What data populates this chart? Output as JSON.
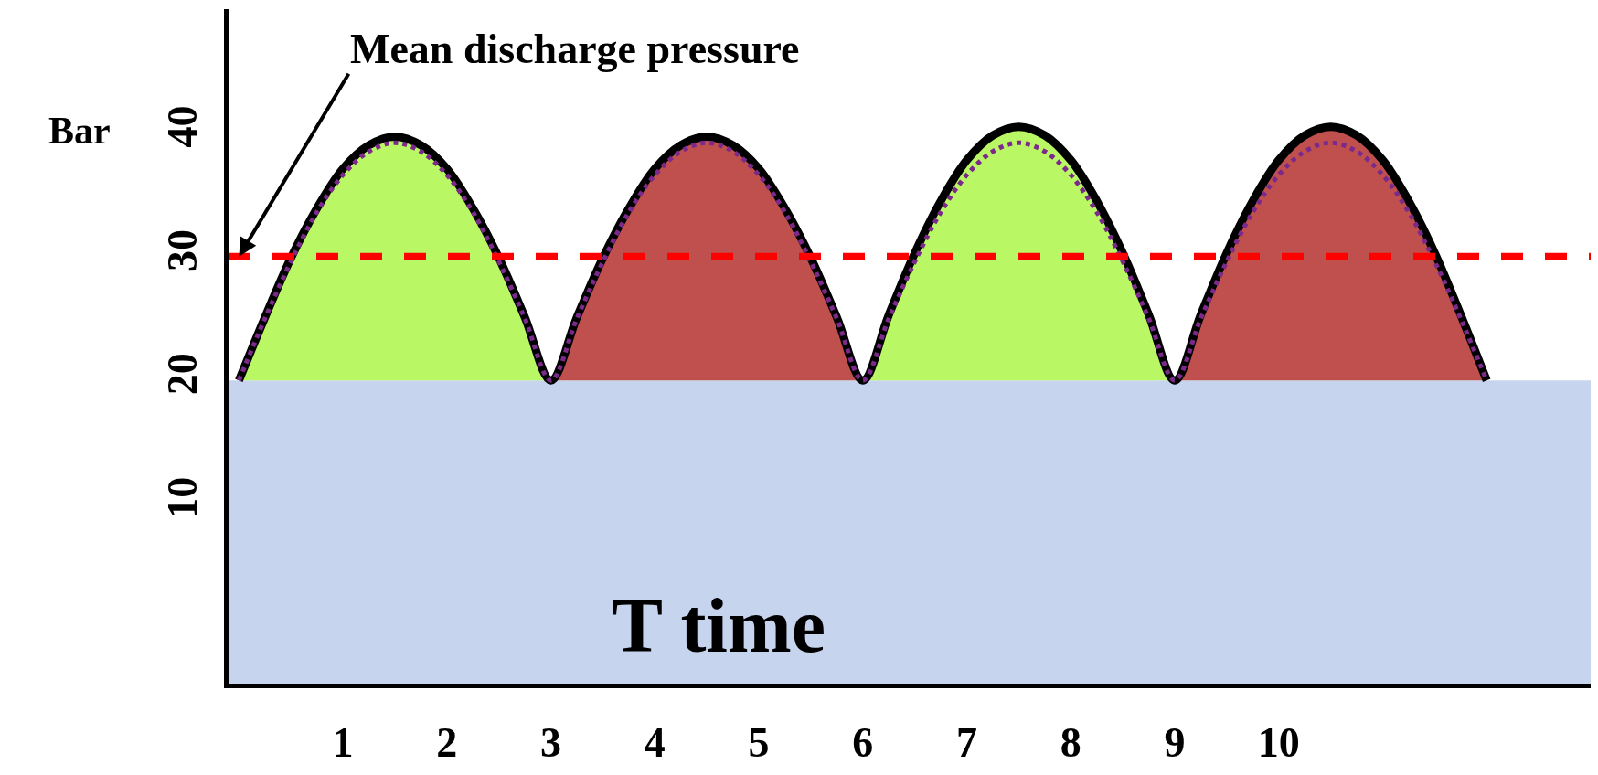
{
  "chart_data": {
    "type": "area",
    "xlabel": "T time",
    "ylabel": "Bar",
    "xlim": [
      -0.1,
      13
    ],
    "ylim": [
      -4.5,
      50
    ],
    "xticks": [
      1,
      2,
      3,
      4,
      5,
      6,
      7,
      8,
      9,
      10
    ],
    "yticks": [
      10,
      20,
      30,
      40
    ],
    "grid": false,
    "series": [
      {
        "color": "#b9f765",
        "x": [
          0,
          0.25,
          0.5,
          0.75,
          1,
          1.25,
          1.5,
          1.75,
          2,
          2.25,
          2.5,
          2.75,
          3
        ],
        "values": [
          20,
          25.1,
          29.9,
          33.9,
          37.1,
          39.0,
          39.7,
          39.0,
          37.1,
          33.9,
          29.9,
          25.1,
          20
        ]
      },
      {
        "color": "#c0504d",
        "x": [
          3,
          3.25,
          3.5,
          3.75,
          4,
          4.25,
          4.5,
          4.75,
          5,
          5.25,
          5.5,
          5.75,
          6
        ],
        "values": [
          20,
          25.1,
          29.9,
          33.9,
          37.1,
          39.0,
          39.7,
          39.0,
          37.1,
          33.9,
          29.9,
          25.1,
          20
        ]
      },
      {
        "color": "#b9f765",
        "x": [
          6,
          6.25,
          6.5,
          6.75,
          7,
          7.25,
          7.5,
          7.75,
          8,
          8.25,
          8.5,
          8.75,
          9
        ],
        "values": [
          20,
          25.3,
          30.3,
          34.5,
          37.8,
          39.8,
          40.5,
          39.8,
          37.8,
          34.5,
          30.3,
          25.3,
          20
        ]
      },
      {
        "color": "#c0504d",
        "x": [
          9,
          9.25,
          9.5,
          9.75,
          10,
          10.25,
          10.5,
          10.75,
          11,
          11.25,
          11.5,
          11.75,
          12
        ],
        "values": [
          20,
          25.3,
          30.3,
          34.5,
          37.8,
          39.8,
          40.5,
          39.8,
          37.8,
          34.5,
          30.3,
          25.3,
          20
        ]
      },
      {
        "type": "line",
        "color": "#000000",
        "line_style": "solid",
        "x": [
          0,
          0.25,
          0.5,
          0.75,
          1,
          1.25,
          1.5,
          1.75,
          2,
          2.25,
          2.5,
          2.75,
          3,
          3.25,
          3.5,
          3.75,
          4,
          4.25,
          4.5,
          4.75,
          5,
          5.25,
          5.5,
          5.75,
          6,
          6.25,
          6.5,
          6.75,
          7,
          7.25,
          7.5,
          7.75,
          8,
          8.25,
          8.5,
          8.75,
          9,
          9.25,
          9.5,
          9.75,
          10,
          10.25,
          10.5,
          10.75,
          11,
          11.25,
          11.5,
          11.75,
          12
        ],
        "values": [
          20,
          25.1,
          29.9,
          33.9,
          37.1,
          39.0,
          39.7,
          39.0,
          37.1,
          33.9,
          29.9,
          25.1,
          20,
          25.1,
          29.9,
          33.9,
          37.1,
          39.0,
          39.7,
          39.0,
          37.1,
          33.9,
          29.9,
          25.1,
          20,
          25.3,
          30.3,
          34.5,
          37.8,
          39.8,
          40.5,
          39.8,
          37.8,
          34.5,
          30.3,
          25.3,
          20,
          25.3,
          30.3,
          34.5,
          37.8,
          39.8,
          40.5,
          39.8,
          37.8,
          34.5,
          30.3,
          25.3,
          20
        ]
      },
      {
        "type": "line",
        "color": "#7b2a8b",
        "line_style": "dotted",
        "x": [
          0,
          0.25,
          0.5,
          0.75,
          1,
          1.25,
          1.5,
          1.75,
          2,
          2.25,
          2.5,
          2.75,
          3,
          3.25,
          3.5,
          3.75,
          4,
          4.25,
          4.5,
          4.75,
          5,
          5.25,
          5.5,
          5.75,
          6,
          6.25,
          6.5,
          6.75,
          7,
          7.25,
          7.5,
          7.75,
          8,
          8.25,
          8.5,
          8.75,
          9,
          9.25,
          9.5,
          9.75,
          10,
          10.25,
          10.5,
          10.75,
          11,
          11.25,
          11.5,
          11.75,
          12
        ],
        "values": [
          20,
          25.0,
          29.6,
          33.6,
          36.6,
          38.5,
          39.2,
          38.5,
          36.6,
          33.6,
          29.6,
          25.0,
          20,
          25.0,
          29.6,
          33.6,
          36.6,
          38.5,
          39.2,
          38.5,
          36.6,
          33.6,
          29.6,
          25.0,
          20,
          25.0,
          29.6,
          33.6,
          36.6,
          38.5,
          39.2,
          38.5,
          36.6,
          33.6,
          29.6,
          25.0,
          20,
          25.0,
          29.6,
          33.6,
          36.6,
          38.5,
          39.2,
          38.5,
          36.6,
          33.6,
          29.6,
          25.0,
          20
        ]
      }
    ],
    "ref_lines": [
      {
        "axis": "y",
        "value": 30,
        "color": "#ff0000",
        "line_style": "dashed"
      }
    ],
    "bands": [
      {
        "axis": "y",
        "from": -4.5,
        "to": 20,
        "color": "#4472c4"
      }
    ],
    "annotations": [
      {
        "text": "Mean discharge pressure",
        "x": 0,
        "y": 30
      }
    ]
  }
}
